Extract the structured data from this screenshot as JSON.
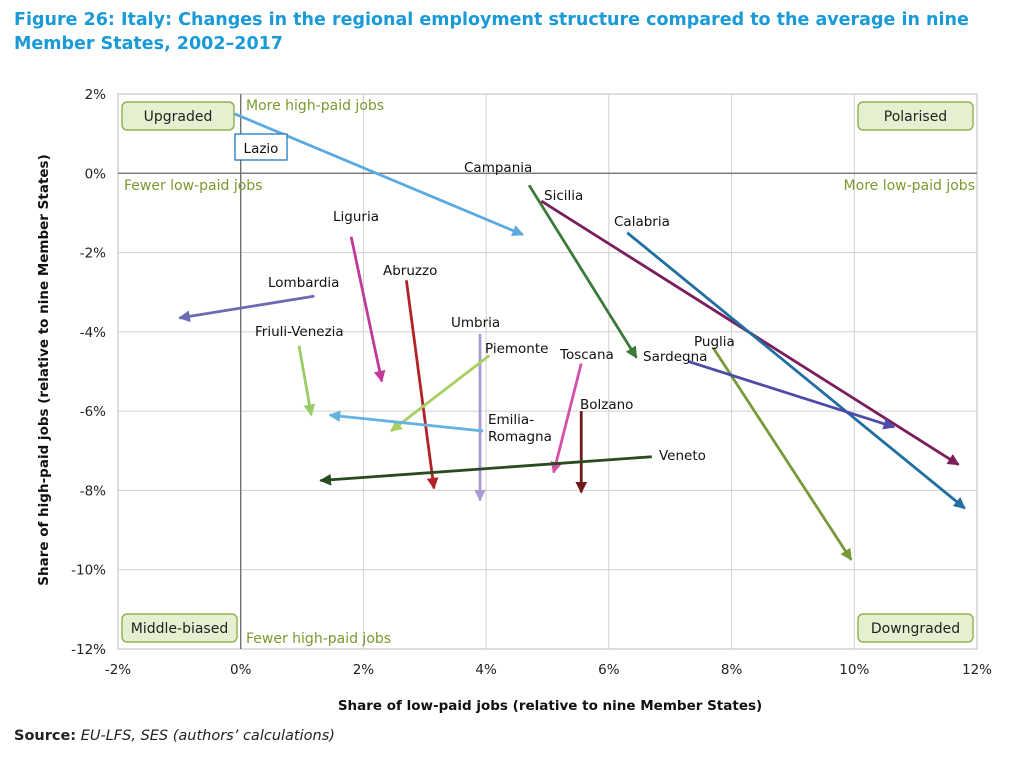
{
  "title": "Figure 26: Italy: Changes in the regional employment structure compared to the average in nine Member States, 2002–2017",
  "source": {
    "label": "Source:",
    "text": "EU-LFS, SES (authors’ calculations)"
  },
  "chart_data": {
    "type": "arrow-scatter",
    "xlabel": "Share of low-paid jobs (relative to nine Member States)",
    "ylabel": "Share of high-paid jobs (relative to nine Member States)",
    "xlim": [
      -2,
      12
    ],
    "ylim": [
      -12,
      2
    ],
    "x_ticks": [
      "-2%",
      "0%",
      "2%",
      "4%",
      "6%",
      "8%",
      "10%",
      "12%"
    ],
    "y_ticks": [
      "2%",
      "0%",
      "-2%",
      "-4%",
      "-6%",
      "-8%",
      "-10%",
      "-12%"
    ],
    "grid": true,
    "corner_labels": [
      "Upgraded",
      "Polarised",
      "Middle-biased",
      "Downgraded"
    ],
    "quadrant_texts": [
      "More high-paid jobs",
      "Fewer low-paid jobs",
      "More low-paid jobs",
      "Fewer high-paid jobs"
    ],
    "series": [
      {
        "name": "Lazio",
        "color": "#5aaadf",
        "start": [
          -0.1,
          1.5
        ],
        "end": [
          4.6,
          -1.55
        ]
      },
      {
        "name": "Campania",
        "color": "#3d7a3a",
        "start": [
          4.7,
          -0.3
        ],
        "end": [
          6.45,
          -4.65
        ]
      },
      {
        "name": "Sicilia",
        "color": "#7a1f5c",
        "start": [
          4.9,
          -0.7
        ],
        "end": [
          11.7,
          -7.35
        ]
      },
      {
        "name": "Calabria",
        "color": "#1f6fa0",
        "start": [
          6.3,
          -1.5
        ],
        "end": [
          11.8,
          -8.45
        ]
      },
      {
        "name": "Liguria",
        "color": "#c0399b",
        "start": [
          1.8,
          -1.6
        ],
        "end": [
          2.3,
          -5.25
        ]
      },
      {
        "name": "Lombardia",
        "color": "#6b6bb2",
        "start": [
          1.2,
          -3.1
        ],
        "end": [
          -1.0,
          -3.65
        ]
      },
      {
        "name": "Abruzzo",
        "color": "#b32226",
        "start": [
          2.7,
          -2.7
        ],
        "end": [
          3.15,
          -7.95
        ]
      },
      {
        "name": "Friuli-Venezia",
        "color": "#99cc66",
        "start": [
          0.95,
          -4.35
        ],
        "end": [
          1.15,
          -6.1
        ]
      },
      {
        "name": "Umbria",
        "color": "#a99bd0",
        "start": [
          3.9,
          -4.05
        ],
        "end": [
          3.9,
          -8.25
        ]
      },
      {
        "name": "Piemonte",
        "color": "#a8d060",
        "start": [
          4.05,
          -4.6
        ],
        "end": [
          2.45,
          -6.5
        ]
      },
      {
        "name": "Toscana",
        "color": "#d44fa8",
        "start": [
          5.55,
          -4.8
        ],
        "end": [
          5.1,
          -7.55
        ]
      },
      {
        "name": "Emilia-Romagna",
        "color": "#66b2e0",
        "start": [
          3.95,
          -6.5
        ],
        "end": [
          1.45,
          -6.1
        ]
      },
      {
        "name": "Bolzano",
        "color": "#6e1a1a",
        "start": [
          5.55,
          -6.0
        ],
        "end": [
          5.55,
          -8.05
        ]
      },
      {
        "name": "Veneto",
        "color": "#2a4a1f",
        "start": [
          6.7,
          -7.15
        ],
        "end": [
          1.3,
          -7.75
        ]
      },
      {
        "name": "Puglia",
        "color": "#7a9a3a",
        "start": [
          7.7,
          -4.4
        ],
        "end": [
          9.95,
          -9.75
        ]
      },
      {
        "name": "Sardegna",
        "color": "#4d4ba8",
        "start": [
          7.3,
          -4.75
        ],
        "end": [
          10.65,
          -6.4
        ]
      }
    ]
  }
}
